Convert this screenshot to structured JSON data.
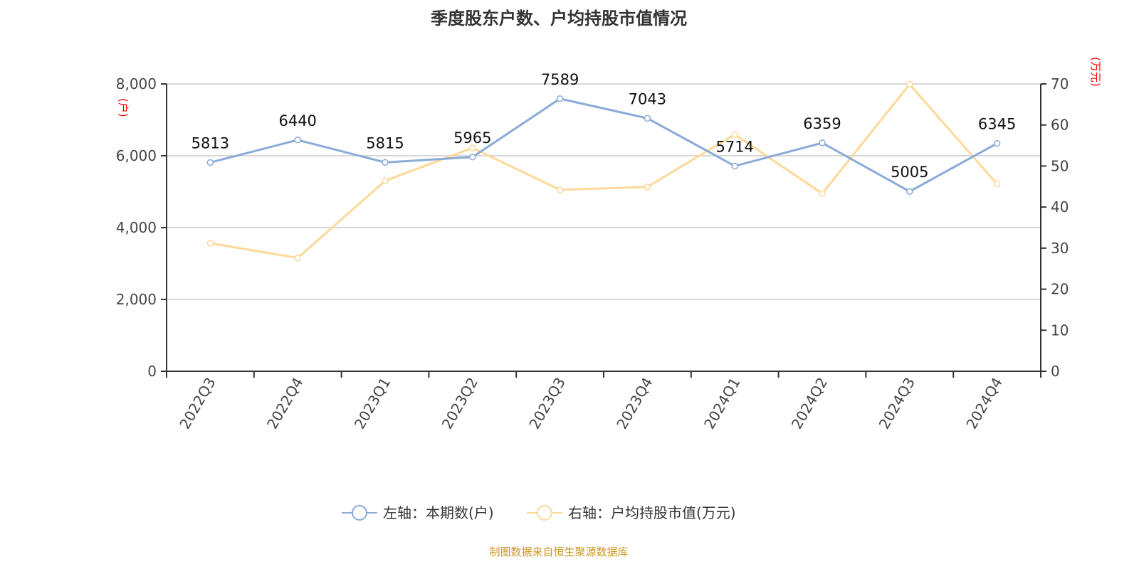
{
  "chart_data": {
    "type": "line",
    "title": "季度股东户数、户均持股市值情况",
    "categories": [
      "2022Q3",
      "2022Q4",
      "2023Q1",
      "2023Q2",
      "2023Q3",
      "2023Q4",
      "2024Q1",
      "2024Q2",
      "2024Q3",
      "2024Q4"
    ],
    "left_axis": {
      "label": "(户)",
      "range": [
        0,
        8000
      ],
      "ticks": [
        "0",
        "2,000",
        "4,000",
        "6,000",
        "8,000"
      ],
      "tick_values": [
        0,
        2000,
        4000,
        6000,
        8000
      ]
    },
    "right_axis": {
      "label": "(万元)",
      "range": [
        0,
        70
      ],
      "ticks": [
        "0",
        "10",
        "20",
        "30",
        "40",
        "50",
        "60",
        "70"
      ],
      "tick_values": [
        0,
        10,
        20,
        30,
        40,
        50,
        60,
        70
      ]
    },
    "series": [
      {
        "name": "左轴：本期数(户)",
        "axis": "left",
        "color": "#8aaad8",
        "values": [
          5813,
          6440,
          5815,
          5965,
          7589,
          7043,
          5714,
          6359,
          5005,
          6345
        ],
        "labels": true
      },
      {
        "name": "右轴：户均持股市值(万元)",
        "axis": "right",
        "color": "#fdd898",
        "values": [
          31.2,
          27.6,
          46.4,
          54.4,
          44.2,
          44.9,
          57.7,
          43.3,
          69.9,
          45.6
        ],
        "labels": false
      }
    ],
    "grid": true,
    "legend": "bottom"
  },
  "source": "制图数据来自恒生聚源数据库",
  "axis_label_color": "#ff0000"
}
